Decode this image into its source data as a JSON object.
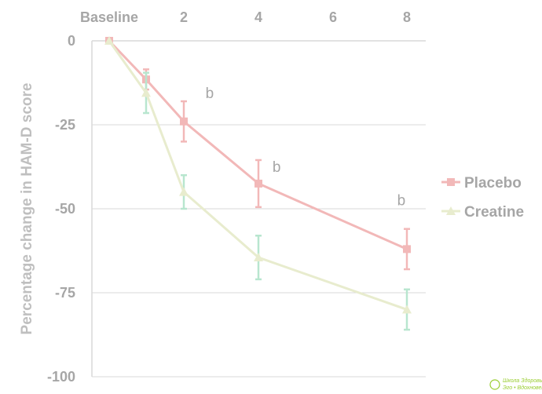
{
  "chart_data": {
    "type": "line",
    "x_categories": [
      "Baseline",
      "1",
      "2",
      "4",
      "8"
    ],
    "x_tick_labels": [
      "Baseline",
      "2",
      "4",
      "6",
      "8"
    ],
    "x_axis_position": "top",
    "ylabel": "Percentage change in HAM-D score",
    "ylim": [
      -100,
      0
    ],
    "y_ticks": [
      0,
      -25,
      -50,
      -75,
      -100
    ],
    "grid": "horizontal",
    "legend_placement": "right",
    "series": [
      {
        "name": "Placebo",
        "color": "#f2b8b8",
        "marker": "square",
        "x": [
          0,
          1,
          2,
          4,
          8
        ],
        "values": [
          0,
          -11.5,
          -24,
          -42.5,
          -62
        ],
        "error": [
          0,
          3,
          6,
          7,
          6
        ]
      },
      {
        "name": "Creatine",
        "color": "#e8ecce",
        "error_color": "#b8e6cf",
        "marker": "triangle",
        "x": [
          0,
          1,
          2,
          4,
          8
        ],
        "values": [
          0,
          -15.5,
          -45,
          -64.5,
          -80
        ],
        "error": [
          0,
          6,
          5,
          6.5,
          6
        ]
      }
    ],
    "annotations": [
      {
        "text": "b",
        "x": 2.7,
        "y": -17
      },
      {
        "text": "b",
        "x": 4.5,
        "y": -39
      },
      {
        "text": "b",
        "x": 7.85,
        "y": -49
      }
    ]
  },
  "watermark": {
    "line1": "Школа Здоровья",
    "line2": "Эго • Вдохновение"
  }
}
